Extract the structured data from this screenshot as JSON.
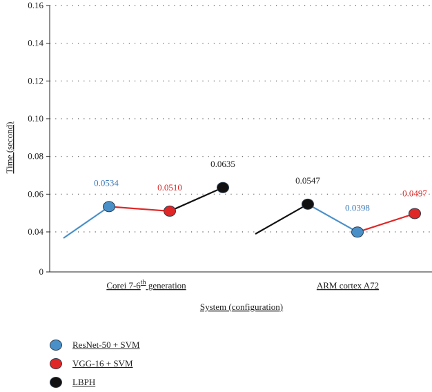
{
  "chart_data": {
    "type": "line",
    "ylabel": "Time (second)",
    "xlabel": "System (configuration)",
    "ylim": [
      0,
      0.16
    ],
    "yticks": [
      {
        "value": 0,
        "label": "0"
      },
      {
        "value": 0.04,
        "label": "0.04"
      },
      {
        "value": 0.06,
        "label": "0.06"
      },
      {
        "value": 0.08,
        "label": "0.08"
      },
      {
        "value": 0.1,
        "label": "0.10"
      },
      {
        "value": 0.12,
        "label": "0.12"
      },
      {
        "value": 0.14,
        "label": "0.14"
      },
      {
        "value": 0.16,
        "label": "0.16"
      }
    ],
    "grid": "dotted horizontal",
    "legend_position": "bottom-left",
    "groups": [
      {
        "category_prefix": "Corei 7-6",
        "category_sup": "th",
        "category_suffix": " generation",
        "points": [
          {
            "series": "ResNet-50 + SVM",
            "value": 0.0534,
            "label": "0.0534"
          },
          {
            "series": "VGG-16 + SVM",
            "value": 0.051,
            "label": "0.0510"
          },
          {
            "series": "LBPH",
            "value": 0.0635,
            "label": "0.0635"
          }
        ]
      },
      {
        "category_prefix": "ARM cortex A72",
        "category_sup": "",
        "category_suffix": "",
        "points": [
          {
            "series": "LBPH",
            "value": 0.0547,
            "label": "0.0547"
          },
          {
            "series": "ResNet-50 + SVM",
            "value": 0.0398,
            "label": "0.0398"
          },
          {
            "series": "VGG-16 + SVM",
            "value": 0.0497,
            "label": "0.0497"
          }
        ]
      }
    ],
    "series": [
      {
        "name": "ResNet-50 + SVM",
        "color": "#4a90c8",
        "label_color": "#3d7ab8"
      },
      {
        "name": "VGG-16 + SVM",
        "color": "#e02626",
        "label_color": "#e02626"
      },
      {
        "name": "LBPH",
        "color": "#111111",
        "label_color": "#222222"
      }
    ]
  }
}
